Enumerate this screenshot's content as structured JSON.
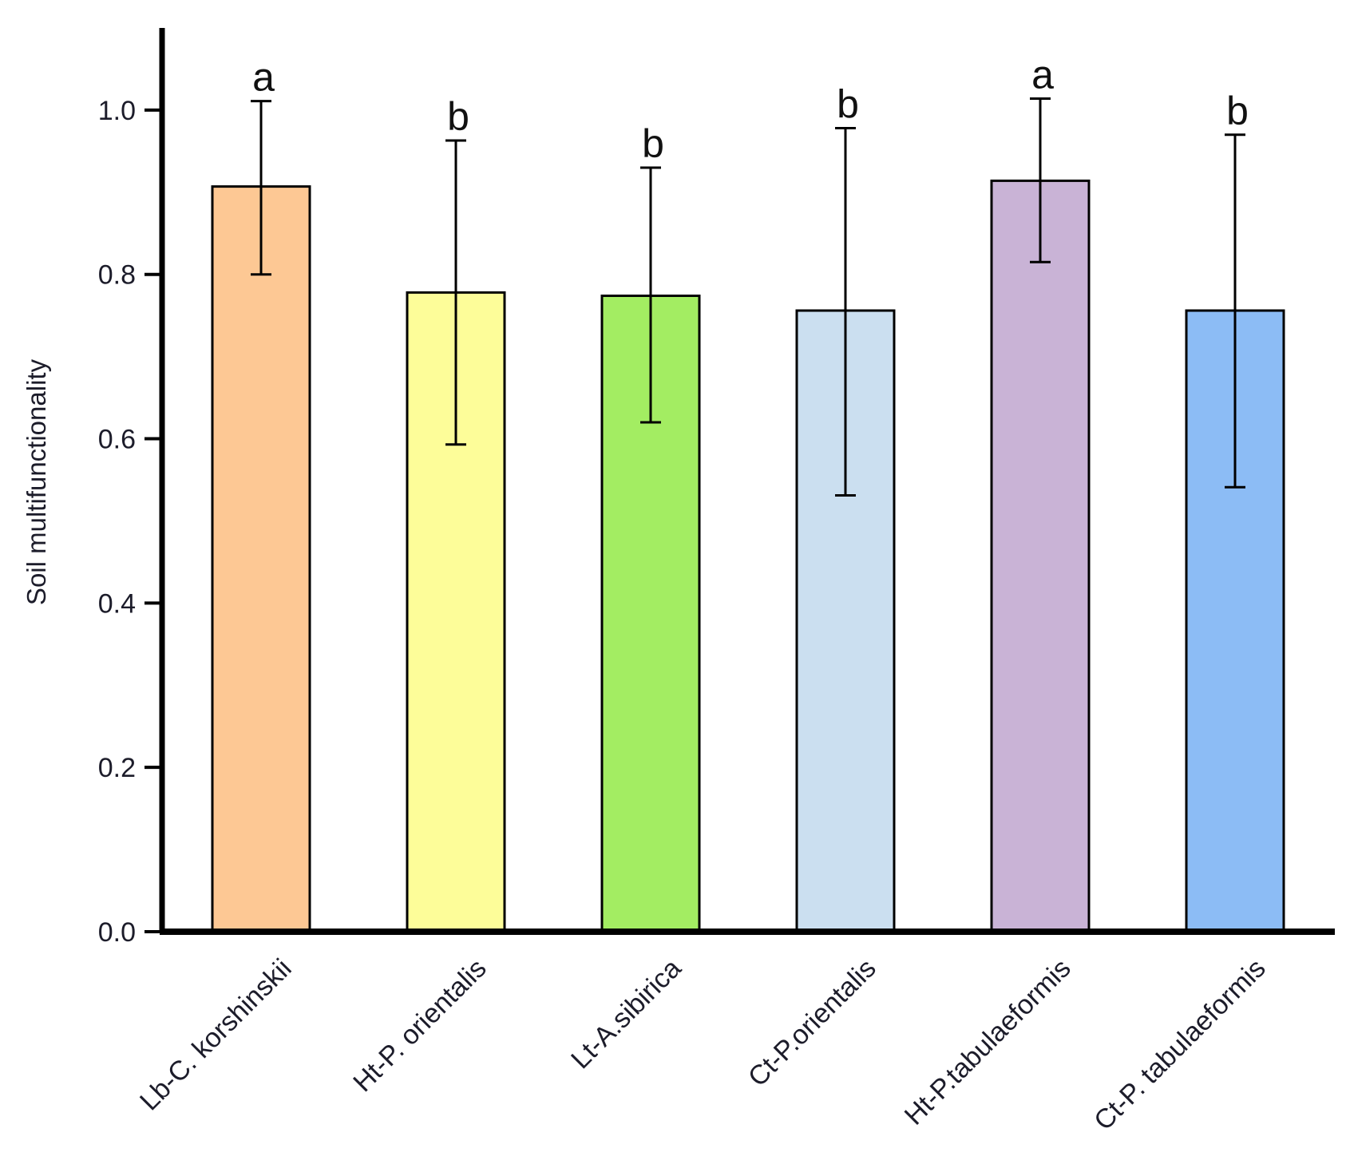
{
  "chart_data": {
    "type": "bar",
    "title": "",
    "xlabel": "",
    "ylabel": "Soil  multifunctionality",
    "ylim": [
      0,
      1.1
    ],
    "yticks": [
      0.0,
      0.2,
      0.4,
      0.6,
      0.8,
      1.0
    ],
    "ytick_labels": [
      "0.0",
      "0.2",
      "0.4",
      "0.6",
      "0.8",
      "1.0"
    ],
    "grid": false,
    "legend": "none",
    "categories": [
      "Lb-C. korshinskii",
      "Ht-P. orientalis",
      "Lt-A.sibirica",
      "Ct-P.orientalis",
      "Ht-P.tabulaeformis",
      "Ct-P. tabulaeformis"
    ],
    "values": [
      0.907,
      0.778,
      0.774,
      0.756,
      0.914,
      0.756
    ],
    "error_upper": [
      1.011,
      0.963,
      0.93,
      0.978,
      1.014,
      0.97
    ],
    "error_lower": [
      0.8,
      0.593,
      0.62,
      0.531,
      0.815,
      0.541
    ],
    "significance_letters": [
      "a",
      "b",
      "b",
      "b",
      "a",
      "b"
    ],
    "colors": [
      "#fdc894",
      "#fdfd99",
      "#a3ed62",
      "#cbdff0",
      "#c9b3d6",
      "#8cbcf5"
    ]
  }
}
